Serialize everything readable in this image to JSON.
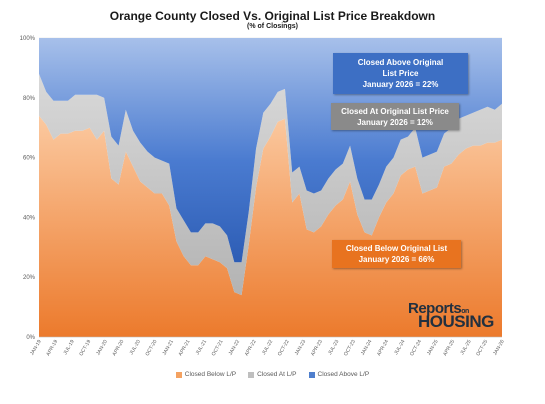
{
  "chart_data": {
    "type": "area",
    "stacked": true,
    "title": "Orange County Closed Vs. Original List Price Breakdown",
    "subtitle": "(% of Closings)",
    "y_ticks": [
      "0%",
      "20%",
      "40%",
      "60%",
      "80%",
      "100%"
    ],
    "ylim": [
      0,
      100
    ],
    "x_ticks": [
      "JAN-19",
      "APR-19",
      "JUL-19",
      "OCT-19",
      "JAN-20",
      "APR-20",
      "JUL-20",
      "OCT-20",
      "JAN-21",
      "APR-21",
      "JUL-21",
      "OCT-21",
      "JAN-22",
      "APR-22",
      "JUL-22",
      "OCT-22",
      "JAN-23",
      "APR-23",
      "JUL-23",
      "OCT-23",
      "JAN-24",
      "APR-24",
      "JUL-24",
      "OCT-24",
      "JAN-25",
      "APR-25",
      "JUL-25",
      "OCT-25",
      "JAN-26"
    ],
    "below": [
      74,
      71,
      66,
      68,
      68,
      69,
      69,
      70,
      66,
      69,
      53,
      51,
      62,
      57,
      52,
      50,
      48,
      48,
      44,
      32,
      27,
      24,
      24,
      27,
      26,
      25,
      23,
      15,
      14,
      31,
      50,
      63,
      67,
      72,
      73,
      45,
      48,
      36,
      35,
      37,
      41,
      44,
      46,
      52,
      41,
      35,
      34,
      40,
      45,
      48,
      54,
      56,
      57,
      48,
      49,
      50,
      57,
      58,
      61,
      63,
      64,
      64,
      65,
      65,
      66
    ],
    "at": [
      14,
      11,
      13,
      11,
      11,
      12,
      12,
      11,
      15,
      11,
      14,
      13,
      14,
      12,
      13,
      12,
      12,
      11,
      14,
      11,
      12,
      11,
      11,
      11,
      12,
      12,
      11,
      10,
      11,
      11,
      13,
      12,
      11,
      10,
      10,
      10,
      9,
      13,
      13,
      12,
      12,
      12,
      12,
      12,
      12,
      11,
      12,
      11,
      12,
      12,
      12,
      11,
      13,
      12,
      12,
      12,
      11,
      12,
      12,
      11,
      11,
      12,
      12,
      11,
      12
    ],
    "above": [
      12,
      18,
      21,
      21,
      21,
      19,
      19,
      19,
      19,
      20,
      33,
      36,
      24,
      31,
      35,
      38,
      40,
      41,
      42,
      57,
      61,
      65,
      65,
      62,
      62,
      63,
      66,
      75,
      75,
      58,
      37,
      25,
      22,
      18,
      17,
      45,
      43,
      51,
      52,
      51,
      47,
      44,
      42,
      36,
      47,
      54,
      54,
      49,
      43,
      40,
      34,
      33,
      30,
      40,
      39,
      38,
      32,
      30,
      27,
      26,
      25,
      24,
      23,
      24,
      22
    ],
    "series": [
      {
        "name": "Closed Below L/P",
        "color": "#f4a261"
      },
      {
        "name": "Closed At L/P",
        "color": "#bfbfbf"
      },
      {
        "name": "Closed Above L/P",
        "color": "#4f7fcd"
      }
    ],
    "legend_position": "bottom",
    "annotations": [
      {
        "line1": "Closed Above Original",
        "line2": "List Price",
        "line3": "January 2026 = 22%",
        "color": "#3d6fc4"
      },
      {
        "line1": "Closed At Original List Price",
        "line2": "January 2026 = 12%",
        "color": "#8a8a8a"
      },
      {
        "line1": "Closed Below Original List",
        "line2": "January 2026 = 66%",
        "color": "#e8731f"
      }
    ]
  },
  "logo": {
    "word1": "Reports",
    "word2": "on",
    "word3": "HOUSING"
  }
}
